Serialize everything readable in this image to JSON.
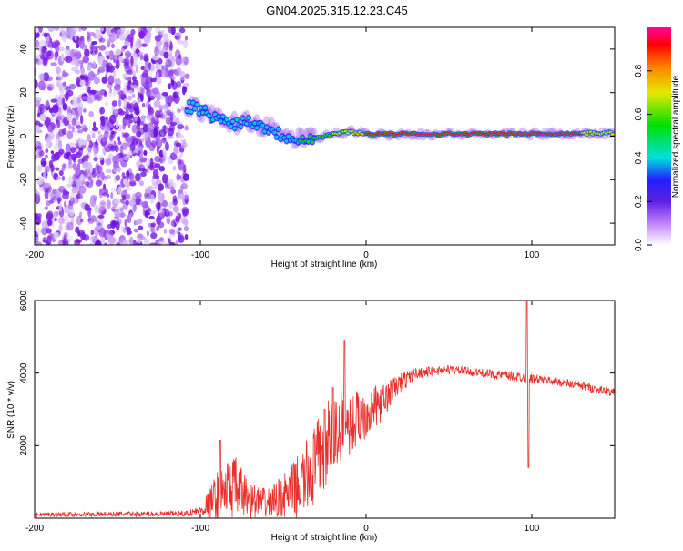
{
  "title": "GN04.2025.315.12.23.C45",
  "colors": {
    "line": "#e8302c",
    "axis": "#000000",
    "colormap": [
      "#ffffff",
      "#9a28e8",
      "#2222ff",
      "#00e8e8",
      "#00e000",
      "#e8e800",
      "#ff8000",
      "#ff0000",
      "#ff00a0"
    ]
  },
  "chart_data": [
    {
      "type": "heatmap",
      "name": "spectrogram",
      "xlabel": "Height of straight line (km)",
      "ylabel": "Frequency (Hz)",
      "xlim": [
        -200,
        150
      ],
      "ylim": [
        -50,
        50
      ],
      "xticks": [
        -200,
        -100,
        0,
        100
      ],
      "yticks": [
        -40,
        -20,
        0,
        20,
        40
      ],
      "description_points": {
        "noise_region_x": [
          -200,
          -108
        ],
        "dispersive_band": [
          {
            "x": -108,
            "y": 14
          },
          {
            "x": -100,
            "y": 12
          },
          {
            "x": -90,
            "y": 8
          },
          {
            "x": -80,
            "y": 6
          },
          {
            "x": -70,
            "y": 7
          },
          {
            "x": -60,
            "y": 4
          },
          {
            "x": -50,
            "y": 0
          },
          {
            "x": -40,
            "y": -1
          },
          {
            "x": -30,
            "y": -1
          },
          {
            "x": -20,
            "y": 1
          },
          {
            "x": -10,
            "y": 2
          },
          {
            "x": 0,
            "y": 1
          },
          {
            "x": 50,
            "y": 1
          },
          {
            "x": 100,
            "y": 1
          },
          {
            "x": 150,
            "y": 1.5
          }
        ]
      },
      "colorbar": {
        "label": "Normalized spectral amplitude",
        "range": [
          0,
          1
        ],
        "ticks": [
          0.0,
          0.2,
          0.4,
          0.6,
          0.8
        ],
        "tick_labels": [
          "0.0",
          "0.2",
          "0.4",
          "0.6",
          "0.8"
        ]
      }
    },
    {
      "type": "line",
      "name": "snr",
      "xlabel": "Height of straight line (km)",
      "ylabel": "SNR (10 * v/v)",
      "xlim": [
        -200,
        150
      ],
      "ylim": [
        0,
        6000
      ],
      "xticks": [
        -200,
        -100,
        0,
        100
      ],
      "yticks": [
        2000,
        4000,
        6000
      ],
      "envelope": [
        {
          "x": -200,
          "base": 100,
          "amp": 60
        },
        {
          "x": -110,
          "base": 120,
          "amp": 80
        },
        {
          "x": -100,
          "base": 200,
          "amp": 120
        },
        {
          "x": -90,
          "base": 600,
          "amp": 700
        },
        {
          "x": -80,
          "base": 900,
          "amp": 900
        },
        {
          "x": -70,
          "base": 500,
          "amp": 500
        },
        {
          "x": -60,
          "base": 400,
          "amp": 400
        },
        {
          "x": -50,
          "base": 600,
          "amp": 600
        },
        {
          "x": -40,
          "base": 900,
          "amp": 900
        },
        {
          "x": -30,
          "base": 1500,
          "amp": 1200
        },
        {
          "x": -20,
          "base": 2300,
          "amp": 1200
        },
        {
          "x": -10,
          "base": 2600,
          "amp": 900
        },
        {
          "x": 0,
          "base": 2900,
          "amp": 700
        },
        {
          "x": 10,
          "base": 3200,
          "amp": 500
        },
        {
          "x": 20,
          "base": 3700,
          "amp": 300
        },
        {
          "x": 30,
          "base": 4000,
          "amp": 150
        },
        {
          "x": 50,
          "base": 4100,
          "amp": 120
        },
        {
          "x": 70,
          "base": 4000,
          "amp": 120
        },
        {
          "x": 90,
          "base": 3900,
          "amp": 150
        },
        {
          "x": 110,
          "base": 3800,
          "amp": 120
        },
        {
          "x": 130,
          "base": 3650,
          "amp": 120
        },
        {
          "x": 150,
          "base": 3450,
          "amp": 120
        }
      ],
      "spikes": [
        {
          "x": -88,
          "y": 2150
        },
        {
          "x": -25,
          "y": 3000
        },
        {
          "x": -20,
          "y": 3600
        },
        {
          "x": -13,
          "y": 4900
        },
        {
          "x": 97,
          "y": 6000
        },
        {
          "x": 98,
          "y": 1400
        }
      ]
    }
  ]
}
